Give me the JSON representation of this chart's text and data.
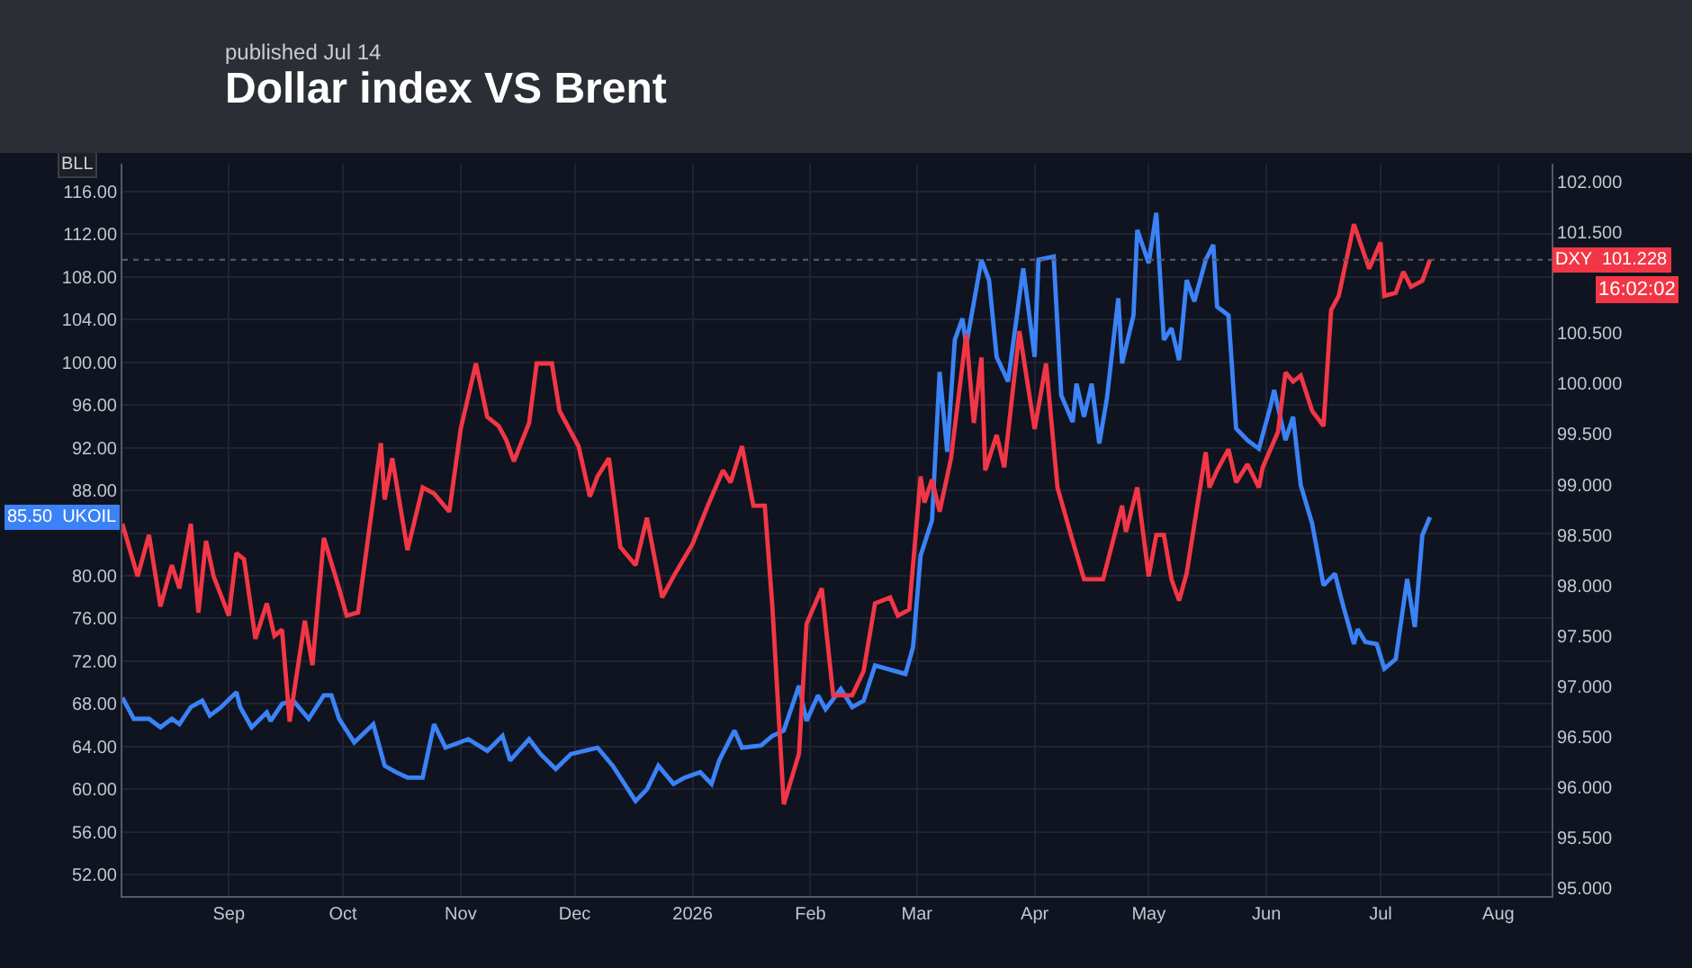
{
  "chart_data": {
    "type": "line",
    "title": "Dollar index VS Brent",
    "subtitle": "published Jul 14",
    "ylabel": "BLL",
    "grid": true,
    "legend": false,
    "marker": "none",
    "line_style": "solid",
    "xlim": [
      "2025-08-04",
      "2026-08-15"
    ],
    "xticks": [
      {
        "value": "2025-09-01",
        "label": "Sep"
      },
      {
        "value": "2025-10-01",
        "label": "Oct"
      },
      {
        "value": "2025-11-01",
        "label": "Nov"
      },
      {
        "value": "2025-12-01",
        "label": "Dec"
      },
      {
        "value": "2026-01-01",
        "label": "2026"
      },
      {
        "value": "2026-02-01",
        "label": "Feb"
      },
      {
        "value": "2026-03-01",
        "label": "Mar"
      },
      {
        "value": "2026-04-01",
        "label": "Apr"
      },
      {
        "value": "2026-05-01",
        "label": "May"
      },
      {
        "value": "2026-06-01",
        "label": "Jun"
      },
      {
        "value": "2026-07-01",
        "label": "Jul"
      },
      {
        "value": "2026-08-01",
        "label": "Aug"
      }
    ],
    "ylim": [
      50.0,
      118.6
    ],
    "yticks": [
      {
        "value": 52,
        "label": "52.00"
      },
      {
        "value": 56,
        "label": "56.00"
      },
      {
        "value": 60,
        "label": "60.00"
      },
      {
        "value": 64,
        "label": "64.00"
      },
      {
        "value": 68,
        "label": "68.00"
      },
      {
        "value": 72,
        "label": "72.00"
      },
      {
        "value": 76,
        "label": "76.00"
      },
      {
        "value": 80,
        "label": "80.00"
      },
      {
        "value": 84,
        "label": null
      },
      {
        "value": 88,
        "label": "88.00"
      },
      {
        "value": 92,
        "label": "92.00"
      },
      {
        "value": 96,
        "label": "96.00"
      },
      {
        "value": 100,
        "label": "100.00"
      },
      {
        "value": 104,
        "label": "104.00"
      },
      {
        "value": 108,
        "label": "108.00"
      },
      {
        "value": 112,
        "label": "112.00"
      },
      {
        "value": 116,
        "label": "116.00"
      }
    ],
    "y2lim": [
      94.92,
      102.18
    ],
    "y2ticks": [
      {
        "value": 95,
        "label": "95.000"
      },
      {
        "value": 95.5,
        "label": "95.500"
      },
      {
        "value": 96,
        "label": "96.000"
      },
      {
        "value": 96.5,
        "label": "96.500"
      },
      {
        "value": 97,
        "label": "97.000"
      },
      {
        "value": 97.5,
        "label": "97.500"
      },
      {
        "value": 98,
        "label": "98.000"
      },
      {
        "value": 98.5,
        "label": "98.500"
      },
      {
        "value": 99,
        "label": "99.000"
      },
      {
        "value": 99.5,
        "label": "99.500"
      },
      {
        "value": 100,
        "label": "100.000"
      },
      {
        "value": 100.5,
        "label": "100.500"
      },
      {
        "value": 101.5,
        "label": "101.500"
      },
      {
        "value": 102,
        "label": "102.000"
      }
    ],
    "ref_lines": [
      {
        "axis": "y2",
        "value": 101.228,
        "line_style": "dotted",
        "color": "#5a5f6b"
      }
    ],
    "annotations": [
      "16:02:02"
    ],
    "series": [
      {
        "name": "UKOIL",
        "color": "#3b82f6",
        "axis": "y",
        "x": [
          "2025-08-04",
          "2025-08-07",
          "2025-08-11",
          "2025-08-14",
          "2025-08-17",
          "2025-08-19",
          "2025-08-22",
          "2025-08-25",
          "2025-08-27",
          "2025-08-30",
          "2025-09-03",
          "2025-09-04",
          "2025-09-07",
          "2025-09-11",
          "2025-09-12",
          "2025-09-15",
          "2025-09-18",
          "2025-09-22",
          "2025-09-26",
          "2025-09-28",
          "2025-09-30",
          "2025-10-04",
          "2025-10-09",
          "2025-10-12",
          "2025-10-15",
          "2025-10-18",
          "2025-10-22",
          "2025-10-25",
          "2025-10-28",
          "2025-11-03",
          "2025-11-08",
          "2025-11-12",
          "2025-11-14",
          "2025-11-19",
          "2025-11-22",
          "2025-11-26",
          "2025-11-30",
          "2025-12-07",
          "2025-12-11",
          "2025-12-17",
          "2025-12-20",
          "2025-12-23",
          "2025-12-27",
          "2025-12-30",
          "2026-01-03",
          "2026-01-06",
          "2026-01-08",
          "2026-01-12",
          "2026-01-14",
          "2026-01-19",
          "2026-01-22",
          "2026-01-25",
          "2026-01-29",
          "2026-01-31",
          "2026-02-03",
          "2026-02-05",
          "2026-02-09",
          "2026-02-12",
          "2026-02-15",
          "2026-02-18",
          "2026-02-26",
          "2026-02-28",
          "2026-03-02",
          "2026-03-05",
          "2026-03-07",
          "2026-03-09",
          "2026-03-11",
          "2026-03-13",
          "2026-03-14",
          "2026-03-18",
          "2026-03-20",
          "2026-03-22",
          "2026-03-25",
          "2026-03-29",
          "2026-04-01",
          "2026-04-02",
          "2026-04-06",
          "2026-04-08",
          "2026-04-11",
          "2026-04-12",
          "2026-04-14",
          "2026-04-16",
          "2026-04-18",
          "2026-04-20",
          "2026-04-23",
          "2026-04-24",
          "2026-04-27",
          "2026-04-28",
          "2026-05-01",
          "2026-05-03",
          "2026-05-05",
          "2026-05-07",
          "2026-05-09",
          "2026-05-11",
          "2026-05-13",
          "2026-05-16",
          "2026-05-18",
          "2026-05-19",
          "2026-05-22",
          "2026-05-24",
          "2026-05-27",
          "2026-05-30",
          "2026-06-02",
          "2026-06-03",
          "2026-06-06",
          "2026-06-08",
          "2026-06-10",
          "2026-06-13",
          "2026-06-16",
          "2026-06-19",
          "2026-06-21",
          "2026-06-24",
          "2026-06-25",
          "2026-06-27",
          "2026-06-30",
          "2026-07-02",
          "2026-07-05",
          "2026-07-08",
          "2026-07-10",
          "2026-07-12",
          "2026-07-14"
        ],
        "values": [
          68.6,
          66.6,
          66.6,
          65.8,
          66.6,
          66.1,
          67.7,
          68.3,
          66.9,
          67.7,
          69.1,
          67.7,
          65.8,
          67.2,
          66.4,
          68.0,
          68.3,
          66.6,
          68.8,
          68.8,
          66.6,
          64.4,
          66.1,
          62.2,
          61.6,
          61.1,
          61.1,
          66.1,
          63.9,
          64.7,
          63.6,
          65.0,
          62.7,
          64.7,
          63.3,
          61.9,
          63.3,
          63.9,
          62.2,
          58.9,
          60.0,
          62.2,
          60.5,
          61.1,
          61.6,
          60.5,
          62.7,
          65.5,
          63.9,
          64.1,
          65.0,
          65.5,
          69.7,
          66.4,
          68.8,
          67.5,
          69.4,
          67.7,
          68.3,
          71.6,
          70.8,
          73.3,
          81.9,
          85.2,
          99.1,
          91.6,
          102.1,
          104.1,
          101.6,
          109.6,
          107.7,
          100.5,
          98.2,
          108.8,
          100.5,
          109.6,
          109.9,
          96.9,
          94.4,
          98.0,
          94.9,
          98.0,
          92.4,
          96.6,
          106.0,
          99.9,
          104.4,
          112.4,
          109.3,
          114.0,
          102.1,
          103.2,
          100.2,
          107.7,
          105.7,
          109.6,
          111.0,
          105.2,
          104.4,
          93.8,
          92.7,
          91.9,
          95.8,
          97.4,
          92.7,
          94.9,
          88.5,
          84.9,
          79.1,
          80.2,
          77.4,
          73.6,
          75.0,
          73.8,
          73.6,
          71.3,
          72.2,
          79.7,
          75.2,
          83.8,
          85.5
        ],
        "value_labels": [
          null,
          null,
          null,
          null,
          null,
          null,
          null,
          null,
          null,
          null,
          null,
          null,
          null,
          null,
          null,
          null,
          null,
          null,
          null,
          null,
          null,
          null,
          null,
          null,
          null,
          null,
          null,
          null,
          null,
          null,
          null,
          null,
          null,
          null,
          null,
          null,
          null,
          null,
          null,
          null,
          null,
          null,
          null,
          null,
          null,
          null,
          null,
          null,
          null,
          null,
          null,
          null,
          null,
          null,
          null,
          null,
          null,
          null,
          null,
          null,
          null,
          null,
          null,
          null,
          null,
          null,
          null,
          null,
          null,
          null,
          null,
          null,
          null,
          null,
          null,
          null,
          null,
          null,
          null,
          null,
          null,
          null,
          null,
          null,
          null,
          null,
          null,
          null,
          null,
          null,
          null,
          null,
          null,
          null,
          null,
          null,
          null,
          null,
          null,
          null,
          null,
          null,
          null,
          null,
          null,
          null,
          null,
          null,
          null,
          null,
          null,
          null,
          null,
          null,
          null,
          null,
          null,
          null,
          null,
          null,
          "85.50"
        ]
      },
      {
        "name": "DXY",
        "color": "#f23645",
        "axis": "y2",
        "x": [
          "2025-08-04",
          "2025-08-08",
          "2025-08-11",
          "2025-08-14",
          "2025-08-17",
          "2025-08-19",
          "2025-08-22",
          "2025-08-24",
          "2025-08-26",
          "2025-08-28",
          "2025-09-01",
          "2025-09-03",
          "2025-09-05",
          "2025-09-08",
          "2025-09-11",
          "2025-09-13",
          "2025-09-15",
          "2025-09-17",
          "2025-09-21",
          "2025-09-23",
          "2025-09-26",
          "2025-09-30",
          "2025-10-02",
          "2025-10-05",
          "2025-10-11",
          "2025-10-12",
          "2025-10-14",
          "2025-10-18",
          "2025-10-22",
          "2025-10-25",
          "2025-10-29",
          "2025-11-01",
          "2025-11-05",
          "2025-11-08",
          "2025-11-11",
          "2025-11-13",
          "2025-11-15",
          "2025-11-19",
          "2025-11-21",
          "2025-11-25",
          "2025-11-27",
          "2025-12-02",
          "2025-12-05",
          "2025-12-07",
          "2025-12-10",
          "2025-12-13",
          "2025-12-17",
          "2025-12-20",
          "2025-12-24",
          "2025-12-27",
          "2026-01-01",
          "2026-01-05",
          "2026-01-09",
          "2026-01-11",
          "2026-01-14",
          "2026-01-17",
          "2026-01-20",
          "2026-01-22",
          "2026-01-25",
          "2026-01-29",
          "2026-01-31",
          "2026-02-04",
          "2026-02-07",
          "2026-02-12",
          "2026-02-15",
          "2026-02-18",
          "2026-02-22",
          "2026-02-24",
          "2026-02-27",
          "2026-03-02",
          "2026-03-03",
          "2026-03-05",
          "2026-03-07",
          "2026-03-10",
          "2026-03-14",
          "2026-03-16",
          "2026-03-18",
          "2026-03-19",
          "2026-03-22",
          "2026-03-24",
          "2026-03-28",
          "2026-04-01",
          "2026-04-04",
          "2026-04-07",
          "2026-04-11",
          "2026-04-14",
          "2026-04-19",
          "2026-04-24",
          "2026-04-25",
          "2026-04-28",
          "2026-05-01",
          "2026-05-03",
          "2026-05-05",
          "2026-05-07",
          "2026-05-09",
          "2026-05-11",
          "2026-05-16",
          "2026-05-17",
          "2026-05-19",
          "2026-05-22",
          "2026-05-24",
          "2026-05-27",
          "2026-05-30",
          "2026-05-31",
          "2026-06-04",
          "2026-06-06",
          "2026-06-08",
          "2026-06-10",
          "2026-06-13",
          "2026-06-16",
          "2026-06-18",
          "2026-06-20",
          "2026-06-24",
          "2026-06-28",
          "2026-07-01",
          "2026-07-02",
          "2026-07-05",
          "2026-07-07",
          "2026-07-09",
          "2026-07-12",
          "2026-07-14"
        ],
        "values": [
          98.61,
          98.09,
          98.5,
          97.79,
          98.2,
          97.97,
          98.61,
          97.73,
          98.44,
          98.09,
          97.7,
          98.32,
          98.26,
          97.47,
          97.82,
          97.5,
          97.56,
          96.65,
          97.65,
          97.21,
          98.47,
          97.97,
          97.7,
          97.73,
          99.41,
          98.85,
          99.26,
          98.35,
          98.97,
          98.91,
          98.73,
          99.55,
          100.2,
          99.67,
          99.58,
          99.44,
          99.23,
          99.61,
          100.2,
          100.2,
          99.73,
          99.38,
          98.88,
          99.08,
          99.26,
          98.38,
          98.2,
          98.67,
          97.88,
          98.09,
          98.41,
          98.79,
          99.14,
          99.02,
          99.38,
          98.79,
          98.79,
          97.79,
          95.83,
          96.33,
          97.62,
          97.97,
          96.91,
          96.91,
          97.15,
          97.82,
          97.88,
          97.7,
          97.76,
          99.08,
          98.82,
          99.05,
          98.73,
          99.26,
          100.49,
          99.61,
          100.26,
          99.14,
          99.49,
          99.17,
          100.52,
          99.55,
          100.2,
          98.97,
          98.44,
          98.06,
          98.06,
          98.79,
          98.53,
          98.97,
          98.09,
          98.5,
          98.5,
          98.06,
          97.85,
          98.12,
          99.32,
          98.97,
          99.14,
          99.35,
          99.02,
          99.2,
          98.97,
          99.17,
          99.52,
          100.11,
          100.02,
          100.08,
          99.73,
          99.58,
          100.73,
          100.87,
          101.58,
          101.14,
          101.4,
          100.87,
          100.9,
          101.11,
          100.96,
          101.02,
          101.228
        ],
        "value_labels": [
          null,
          null,
          null,
          null,
          null,
          null,
          null,
          null,
          null,
          null,
          null,
          null,
          null,
          null,
          null,
          null,
          null,
          null,
          null,
          null,
          null,
          null,
          null,
          null,
          null,
          null,
          null,
          null,
          null,
          null,
          null,
          null,
          null,
          null,
          null,
          null,
          null,
          null,
          null,
          null,
          null,
          null,
          null,
          null,
          null,
          null,
          null,
          null,
          null,
          null,
          null,
          null,
          null,
          null,
          null,
          null,
          null,
          null,
          null,
          null,
          null,
          null,
          null,
          null,
          null,
          null,
          null,
          null,
          null,
          null,
          null,
          null,
          null,
          null,
          null,
          null,
          null,
          null,
          null,
          null,
          null,
          null,
          null,
          null,
          null,
          null,
          null,
          null,
          null,
          null,
          null,
          null,
          null,
          null,
          null,
          null,
          null,
          null,
          null,
          null,
          null,
          null,
          null,
          null,
          null,
          null,
          null,
          null,
          null,
          null,
          null,
          null,
          null,
          null,
          null,
          null,
          null,
          null,
          null,
          null,
          "101.228"
        ]
      }
    ]
  }
}
